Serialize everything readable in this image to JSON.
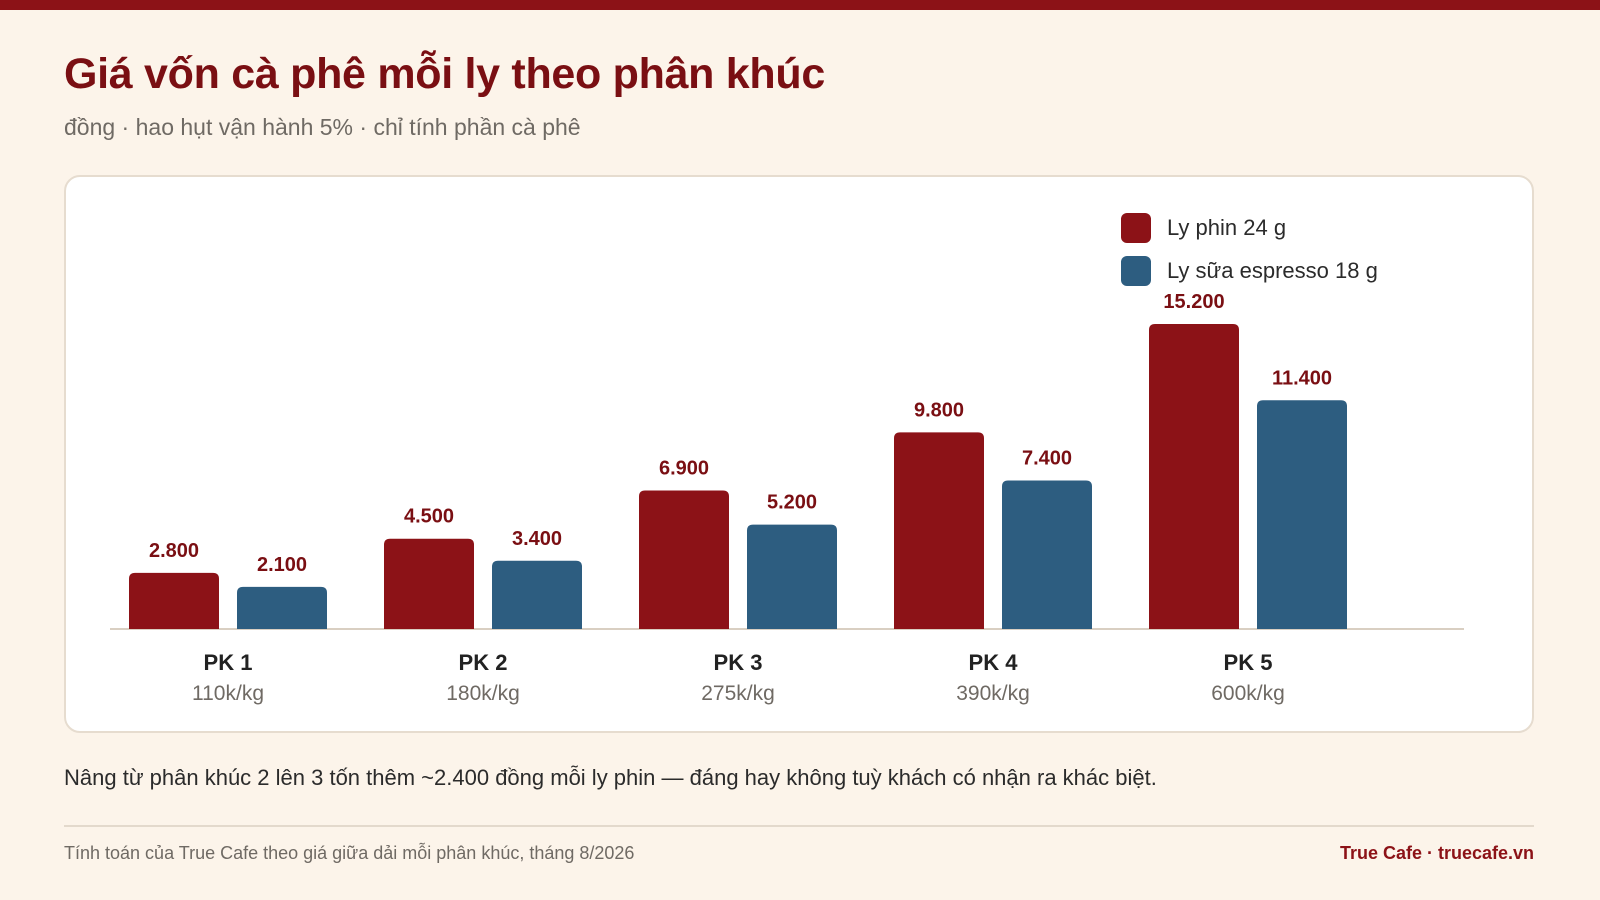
{
  "header": {
    "title": "Giá vốn cà phê mỗi ly theo phân khúc",
    "subtitle": "đồng · hao hụt vận hành 5% · chỉ tính phần cà phê"
  },
  "legend": {
    "items": [
      {
        "label": "Ly phin 24 g",
        "color": "#8c1217"
      },
      {
        "label": "Ly sữa espresso 18 g",
        "color": "#2d5d80"
      }
    ]
  },
  "chart_data": {
    "type": "bar",
    "categories": [
      "PK 1",
      "PK 2",
      "PK 3",
      "PK 4",
      "PK 5"
    ],
    "category_sublabels": [
      "110k/kg",
      "180k/kg",
      "275k/kg",
      "390k/kg",
      "600k/kg"
    ],
    "series": [
      {
        "name": "Ly phin 24 g",
        "values": [
          2800,
          4500,
          6900,
          9800,
          15200
        ],
        "labels": [
          "2.800",
          "4.500",
          "6.900",
          "9.800",
          "15.200"
        ],
        "color": "#8c1217"
      },
      {
        "name": "Ly sữa espresso 18 g",
        "values": [
          2100,
          3400,
          5200,
          7400,
          11400
        ],
        "labels": [
          "2.100",
          "3.400",
          "5.200",
          "7.400",
          "11.400"
        ],
        "color": "#2d5d80"
      }
    ],
    "title": "Giá vốn cà phê mỗi ly theo phân khúc",
    "ylim": [
      0,
      15200
    ],
    "grid": false,
    "legend_position": "top-right"
  },
  "note": "Nâng từ phân khúc 2 lên 3 tốn thêm ~2.400 đồng mỗi ly phin — đáng hay không tuỳ khách có nhận ra khác biệt.",
  "footer": {
    "source": "Tính toán của True Cafe theo giá giữa dải mỗi phân khúc, tháng 8/2026",
    "brand": "True Cafe · truecafe.vn"
  }
}
